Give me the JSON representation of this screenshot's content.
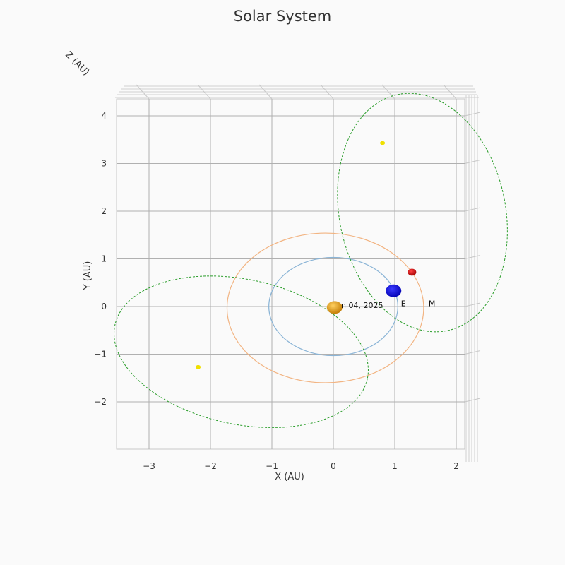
{
  "chart_data": {
    "type": "scatter",
    "title": "Solar System",
    "xlabel": "X (AU)",
    "ylabel": "Y (AU)",
    "zlabel": "Z (AU)",
    "xlim": [
      -3.5,
      2.2
    ],
    "ylim": [
      -2.9,
      4.3
    ],
    "x_ticks": [
      -3,
      -2,
      -1,
      0,
      1,
      2
    ],
    "x_tick_labels": [
      "−3",
      "−2",
      "−1",
      "0",
      "1",
      "2"
    ],
    "y_ticks": [
      -2,
      -1,
      0,
      1,
      2,
      3,
      4
    ],
    "y_tick_labels": [
      "−2",
      "−1",
      "0",
      "1",
      "2",
      "3",
      "4"
    ],
    "grid": true,
    "date_label": "n 04, 2025",
    "colors": {
      "background": "#fafafa",
      "grid": "#b0b0b0",
      "earth_orbit": "#8ab4d6",
      "mars_orbit": "#f2b482",
      "comet_orbit": "#2a9d2a",
      "sun": "#e09a10",
      "earth": "#0000e0",
      "mars": "#d01010",
      "comet": "#f0e000"
    },
    "orbits": [
      {
        "name": "earth-orbit",
        "cx": 0.0,
        "cy": 0.0,
        "rx": 1.05,
        "ry": 1.03,
        "angle": 0,
        "style": "solid"
      },
      {
        "name": "mars-orbit",
        "cx": -0.13,
        "cy": -0.03,
        "rx": 1.6,
        "ry": 1.57,
        "angle": 0,
        "style": "solid"
      },
      {
        "name": "comet-orbit-1",
        "cx": 1.45,
        "cy": 1.97,
        "rx": 1.35,
        "ry": 2.53,
        "angle": 12,
        "style": "dashed"
      },
      {
        "name": "comet-orbit-2",
        "cx": -1.5,
        "cy": -0.95,
        "rx": 2.1,
        "ry": 1.52,
        "angle": -12,
        "style": "dashed"
      }
    ],
    "bodies": [
      {
        "name": "sun",
        "x": 0.02,
        "y": -0.02,
        "size": 11,
        "label": ""
      },
      {
        "name": "earth",
        "x": 0.98,
        "y": 0.33,
        "size": 11,
        "label": "E",
        "label_x": 1.1,
        "label_y": 0.02
      },
      {
        "name": "mars",
        "x": 1.28,
        "y": 0.72,
        "size": 6,
        "label": "M",
        "label_x": 1.55,
        "label_y": 0.02
      },
      {
        "name": "comet-1",
        "x": 0.8,
        "y": 3.43,
        "size": 3.5,
        "label": ""
      },
      {
        "name": "comet-2",
        "x": -2.2,
        "y": -1.27,
        "size": 3.5,
        "label": ""
      }
    ]
  }
}
